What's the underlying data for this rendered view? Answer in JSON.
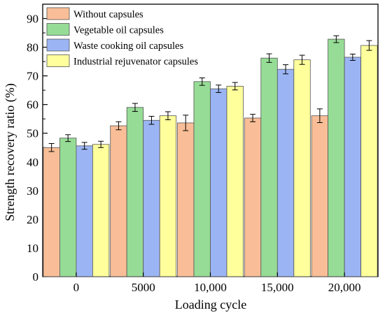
{
  "chart_data": {
    "type": "bar",
    "title": "",
    "xlabel": "Loading cycle",
    "ylabel": "Strength recovery ratio (%)",
    "ylim": [
      0,
      95
    ],
    "yticks": [
      0,
      10,
      20,
      30,
      40,
      50,
      60,
      70,
      80,
      90
    ],
    "categories": [
      "0",
      "5000",
      "10,000",
      "15,000",
      "20,000"
    ],
    "grid": false,
    "legend_position": "top-left",
    "series": [
      {
        "name": "Without capsules",
        "color": "#F9BE97",
        "values": [
          45.0,
          52.6,
          53.6,
          55.3,
          56.1
        ],
        "errors": [
          1.4,
          1.4,
          2.7,
          1.3,
          2.4
        ]
      },
      {
        "name": "Vegetable oil capsules",
        "color": "#96DC96",
        "values": [
          48.3,
          59.0,
          68.0,
          76.2,
          82.8
        ],
        "errors": [
          1.2,
          1.4,
          1.3,
          1.5,
          1.2
        ]
      },
      {
        "name": "Waste cooking oil capsules",
        "color": "#9BB5F4",
        "values": [
          45.6,
          54.5,
          65.5,
          72.3,
          76.5
        ],
        "errors": [
          1.2,
          1.4,
          1.3,
          1.6,
          1.1
        ]
      },
      {
        "name": "Industrial rejuvenator capsules",
        "color": "#FFFF9C",
        "values": [
          46.1,
          56.1,
          66.4,
          75.6,
          80.6
        ],
        "errors": [
          1.1,
          1.4,
          1.3,
          1.6,
          1.7
        ]
      }
    ]
  }
}
